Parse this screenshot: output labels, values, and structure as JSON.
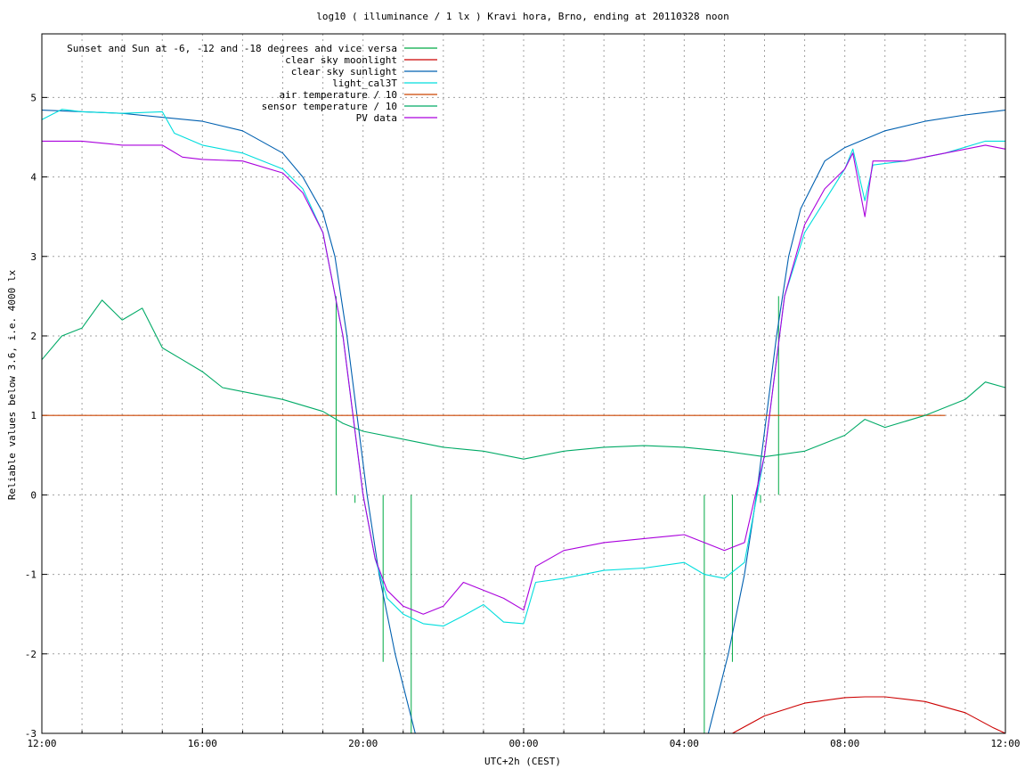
{
  "chart_data": {
    "type": "line",
    "title": "log10 ( illuminance / 1 lx ) Kravi hora, Brno, ending at 20110328 noon",
    "xlabel": "UTC+2h (CEST)",
    "ylabel": "Reliable values below 3.6, i.e. 4000 lx",
    "xlim": [
      0,
      24
    ],
    "ylim": [
      -3,
      5.8
    ],
    "x_ticks": [
      {
        "v": 0,
        "label": "12:00"
      },
      {
        "v": 4,
        "label": "16:00"
      },
      {
        "v": 8,
        "label": "20:00"
      },
      {
        "v": 12,
        "label": "00:00"
      },
      {
        "v": 16,
        "label": "04:00"
      },
      {
        "v": 20,
        "label": "08:00"
      },
      {
        "v": 24,
        "label": "12:00"
      }
    ],
    "x_grid_step": 1,
    "y_ticks": [
      {
        "v": -3,
        "label": "-3"
      },
      {
        "v": -2,
        "label": "-2"
      },
      {
        "v": -1,
        "label": "-1"
      },
      {
        "v": 0,
        "label": "0"
      },
      {
        "v": 1,
        "label": "1"
      },
      {
        "v": 2,
        "label": "2"
      },
      {
        "v": 3,
        "label": "3"
      },
      {
        "v": 4,
        "label": "4"
      },
      {
        "v": 5,
        "label": "5"
      }
    ],
    "grid": true,
    "legend_position": "top-left",
    "series": [
      {
        "name": "Sunset and Sun at -6, -12 and -18 degrees and vice versa",
        "color": "#00aa44",
        "style": "impulses",
        "values": [
          [
            7.33,
            2.5
          ],
          [
            7.8,
            -0.1
          ],
          [
            8.5,
            -2.1
          ],
          [
            9.2,
            -3.0
          ],
          [
            16.5,
            -3.0
          ],
          [
            17.2,
            -2.1
          ],
          [
            17.9,
            -0.1
          ],
          [
            18.35,
            2.5
          ]
        ]
      },
      {
        "name": "clear sky moonlight",
        "color": "#cc0000",
        "values": [
          [
            17.2,
            -3.0
          ],
          [
            18.0,
            -2.78
          ],
          [
            19.0,
            -2.62
          ],
          [
            20.0,
            -2.55
          ],
          [
            20.5,
            -2.54
          ],
          [
            21.0,
            -2.54
          ],
          [
            22.0,
            -2.6
          ],
          [
            23.0,
            -2.74
          ],
          [
            23.7,
            -2.93
          ],
          [
            24.0,
            -3.0
          ]
        ]
      },
      {
        "name": "clear sky sunlight",
        "color": "#0060b0",
        "values": [
          [
            0.0,
            4.84
          ],
          [
            2.0,
            4.8
          ],
          [
            4.0,
            4.7
          ],
          [
            5.0,
            4.58
          ],
          [
            6.0,
            4.3
          ],
          [
            6.5,
            4.0
          ],
          [
            7.0,
            3.55
          ],
          [
            7.3,
            3.0
          ],
          [
            7.6,
            2.0
          ],
          [
            7.85,
            1.0
          ],
          [
            8.1,
            0.0
          ],
          [
            8.4,
            -1.0
          ],
          [
            8.8,
            -2.0
          ],
          [
            9.3,
            -3.0
          ],
          [
            16.6,
            -3.0
          ],
          [
            17.1,
            -2.0
          ],
          [
            17.5,
            -1.0
          ],
          [
            17.8,
            0.0
          ],
          [
            18.05,
            1.0
          ],
          [
            18.3,
            2.0
          ],
          [
            18.6,
            3.0
          ],
          [
            18.9,
            3.6
          ],
          [
            19.5,
            4.2
          ],
          [
            20.0,
            4.37
          ],
          [
            21.0,
            4.58
          ],
          [
            22.0,
            4.7
          ],
          [
            23.0,
            4.78
          ],
          [
            24.0,
            4.84
          ]
        ]
      },
      {
        "name": "light_cal3T",
        "color": "#00dddd",
        "values": [
          [
            0.0,
            4.72
          ],
          [
            0.5,
            4.85
          ],
          [
            1.0,
            4.82
          ],
          [
            2.0,
            4.8
          ],
          [
            3.0,
            4.82
          ],
          [
            3.3,
            4.55
          ],
          [
            4.0,
            4.4
          ],
          [
            5.0,
            4.3
          ],
          [
            6.0,
            4.1
          ],
          [
            6.5,
            3.85
          ],
          [
            7.0,
            3.3
          ],
          [
            7.5,
            2.0
          ],
          [
            8.0,
            0.0
          ],
          [
            8.3,
            -0.8
          ],
          [
            8.6,
            -1.3
          ],
          [
            9.0,
            -1.5
          ],
          [
            9.5,
            -1.62
          ],
          [
            10.0,
            -1.65
          ],
          [
            10.5,
            -1.52
          ],
          [
            11.0,
            -1.38
          ],
          [
            11.5,
            -1.6
          ],
          [
            12.0,
            -1.62
          ],
          [
            12.3,
            -1.1
          ],
          [
            13.0,
            -1.05
          ],
          [
            14.0,
            -0.95
          ],
          [
            15.0,
            -0.92
          ],
          [
            16.0,
            -0.85
          ],
          [
            16.5,
            -1.0
          ],
          [
            17.0,
            -1.05
          ],
          [
            17.5,
            -0.85
          ],
          [
            18.0,
            0.5
          ],
          [
            18.5,
            2.5
          ],
          [
            19.0,
            3.3
          ],
          [
            19.5,
            3.7
          ],
          [
            20.0,
            4.1
          ],
          [
            20.2,
            4.35
          ],
          [
            20.5,
            3.7
          ],
          [
            20.7,
            4.15
          ],
          [
            21.5,
            4.2
          ],
          [
            22.5,
            4.3
          ],
          [
            23.5,
            4.45
          ],
          [
            24.0,
            4.45
          ]
        ]
      },
      {
        "name": "air temperature / 10",
        "color": "#cc4400",
        "values": [
          [
            0.0,
            1.0
          ],
          [
            22.5,
            1.0
          ]
        ]
      },
      {
        "name": "sensor temperature / 10",
        "color": "#00aa66",
        "values": [
          [
            0.0,
            1.7
          ],
          [
            0.5,
            2.0
          ],
          [
            1.0,
            2.1
          ],
          [
            1.5,
            2.45
          ],
          [
            2.0,
            2.2
          ],
          [
            2.5,
            2.35
          ],
          [
            3.0,
            1.85
          ],
          [
            3.5,
            1.7
          ],
          [
            4.0,
            1.55
          ],
          [
            4.5,
            1.35
          ],
          [
            5.0,
            1.3
          ],
          [
            6.0,
            1.2
          ],
          [
            7.0,
            1.05
          ],
          [
            7.5,
            0.9
          ],
          [
            8.0,
            0.8
          ],
          [
            9.0,
            0.7
          ],
          [
            10.0,
            0.6
          ],
          [
            11.0,
            0.55
          ],
          [
            12.0,
            0.45
          ],
          [
            13.0,
            0.55
          ],
          [
            14.0,
            0.6
          ],
          [
            15.0,
            0.62
          ],
          [
            16.0,
            0.6
          ],
          [
            17.0,
            0.55
          ],
          [
            18.0,
            0.48
          ],
          [
            19.0,
            0.55
          ],
          [
            20.0,
            0.75
          ],
          [
            20.5,
            0.95
          ],
          [
            21.0,
            0.85
          ],
          [
            22.0,
            1.0
          ],
          [
            23.0,
            1.2
          ],
          [
            23.5,
            1.42
          ],
          [
            24.0,
            1.35
          ]
        ]
      },
      {
        "name": "PV data",
        "color": "#aa00dd",
        "values": [
          [
            0.0,
            4.45
          ],
          [
            1.0,
            4.45
          ],
          [
            2.0,
            4.4
          ],
          [
            3.0,
            4.4
          ],
          [
            3.5,
            4.25
          ],
          [
            4.0,
            4.22
          ],
          [
            5.0,
            4.2
          ],
          [
            6.0,
            4.05
          ],
          [
            6.5,
            3.8
          ],
          [
            7.0,
            3.3
          ],
          [
            7.5,
            2.0
          ],
          [
            8.0,
            0.0
          ],
          [
            8.3,
            -0.8
          ],
          [
            8.6,
            -1.2
          ],
          [
            9.0,
            -1.4
          ],
          [
            9.5,
            -1.5
          ],
          [
            10.0,
            -1.4
          ],
          [
            10.5,
            -1.1
          ],
          [
            11.0,
            -1.2
          ],
          [
            11.5,
            -1.3
          ],
          [
            12.0,
            -1.45
          ],
          [
            12.3,
            -0.9
          ],
          [
            13.0,
            -0.7
          ],
          [
            14.0,
            -0.6
          ],
          [
            15.0,
            -0.55
          ],
          [
            16.0,
            -0.5
          ],
          [
            16.5,
            -0.6
          ],
          [
            17.0,
            -0.7
          ],
          [
            17.5,
            -0.6
          ],
          [
            18.0,
            0.5
          ],
          [
            18.5,
            2.5
          ],
          [
            19.0,
            3.4
          ],
          [
            19.5,
            3.85
          ],
          [
            20.0,
            4.1
          ],
          [
            20.2,
            4.3
          ],
          [
            20.5,
            3.5
          ],
          [
            20.7,
            4.2
          ],
          [
            21.5,
            4.2
          ],
          [
            22.5,
            4.3
          ],
          [
            23.5,
            4.4
          ],
          [
            24.0,
            4.35
          ]
        ]
      }
    ]
  }
}
